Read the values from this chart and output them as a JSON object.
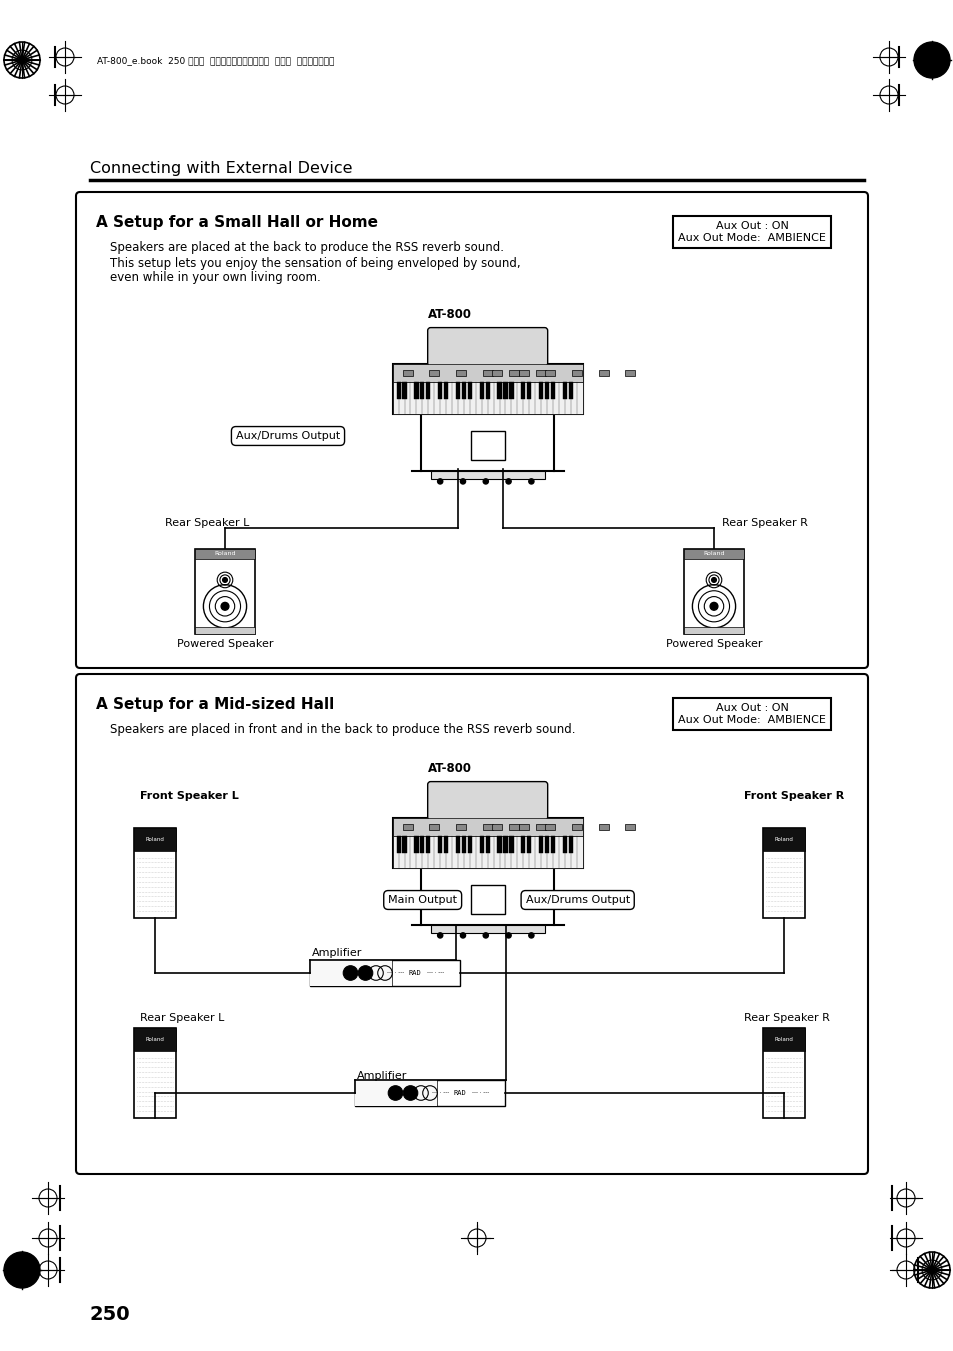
{
  "bg_color": "#ffffff",
  "section_title": "Connecting with External Device",
  "page_number": "250",
  "header_text": "AT-800_e.book  250 ページ  ２００８年１０朎１５日  水曜日  午前９時３７分",
  "box1_title": "A Setup for a Small Hall or Home",
  "box1_desc1": "Speakers are placed at the back to produce the RSS reverb sound.",
  "box1_desc2": "This setup lets you enjoy the sensation of being enveloped by sound,",
  "box1_desc3": "even while in your own living room.",
  "box1_settings": "Aux Out : ON\nAux Out Mode:  AMBIENCE",
  "box1_at800_label": "AT-800",
  "box1_aux_label": "Aux/Drums Output",
  "box1_rear_l": "Rear Speaker L",
  "box1_rear_r": "Rear Speaker R",
  "box1_powered_l": "Powered Speaker",
  "box1_powered_r": "Powered Speaker",
  "box2_title": "A Setup for a Mid-sized Hall",
  "box2_desc": "Speakers are placed in front and in the back to produce the RSS reverb sound.",
  "box2_settings": "Aux Out : ON\nAux Out Mode:  AMBIENCE",
  "box2_at800_label": "AT-800",
  "box2_main_label": "Main Output",
  "box2_aux_label": "Aux/Drums Output",
  "box2_front_l": "Front Speaker L",
  "box2_front_r": "Front Speaker R",
  "box2_rear_l": "Rear Speaker L",
  "box2_rear_r": "Rear Speaker R",
  "box2_amp1": "Amplifier",
  "box2_amp2": "Amplifier"
}
